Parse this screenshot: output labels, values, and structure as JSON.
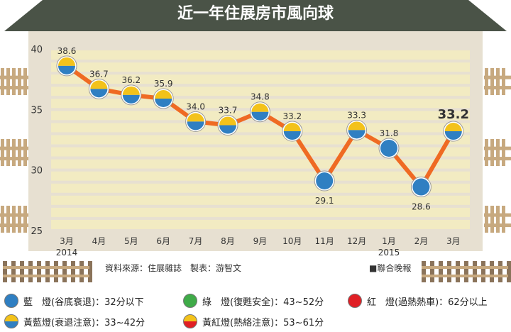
{
  "header": {
    "title": "近一年住展房市風向球"
  },
  "source": {
    "text": "資料來源：住展雜誌　製表：游智文"
  },
  "publisher": {
    "text": "■聯合晚報"
  },
  "legend": [
    {
      "label": "藍　燈(谷底衰退)：32分以下",
      "icon": "blue-light",
      "color": "#2f7fc2"
    },
    {
      "label": "綠　燈(復甦安全)：43~52分",
      "icon": "green-light",
      "color": "#3fab48"
    },
    {
      "label": "紅　燈(過熱熱車)：62分以上",
      "icon": "red-light",
      "color": "#e01f25"
    },
    {
      "label": "黃藍燈(衰退注意)：33~42分",
      "icon": "yellow-blue-light",
      "color": "#f3c21a"
    },
    {
      "label": "黃紅燈(熱絡注意)：53~61分",
      "icon": "yellow-red-light",
      "color": "#f3c21a"
    }
  ],
  "colors": {
    "roof": "#4a5347",
    "board": "#e7e0d1",
    "stripe": "#f2ebc2",
    "line": "#ef6a23",
    "yellow": "#f3c21a",
    "blue": "#2f7fc2",
    "fence": "#c7a97f",
    "rail": "#8a735a"
  },
  "chart_data": {
    "type": "line",
    "title": "近一年住展房市風向球",
    "categories": [
      "3月",
      "4月",
      "5月",
      "6月",
      "7月",
      "8月",
      "9月",
      "10月",
      "11月",
      "12月",
      "1月",
      "2月",
      "3月"
    ],
    "year_labels": [
      "2014",
      "",
      "",
      "",
      "",
      "",
      "",
      "",
      "",
      "",
      "2015",
      "",
      ""
    ],
    "values": [
      38.6,
      36.7,
      36.2,
      35.9,
      34.0,
      33.7,
      34.8,
      33.2,
      29.1,
      33.3,
      31.8,
      28.6,
      33.2
    ],
    "labels": [
      "38.6",
      "36.7",
      "36.2",
      "35.9",
      "34.0",
      "33.7",
      "34.8",
      "33.2",
      "29.1",
      "33.3",
      "31.8",
      "28.6",
      "33.2"
    ],
    "light_types": [
      "yellow-blue",
      "yellow-blue",
      "yellow-blue",
      "yellow-blue",
      "yellow-blue",
      "yellow-blue",
      "yellow-blue",
      "yellow-blue",
      "blue",
      "yellow-blue",
      "blue",
      "blue",
      "yellow-blue"
    ],
    "label_positions": [
      "above",
      "above",
      "above",
      "above",
      "above",
      "above",
      "above",
      "above",
      "below",
      "above",
      "above",
      "below",
      "above"
    ],
    "highlight_last": true,
    "ylim": [
      25,
      40
    ],
    "yticks": [
      25,
      30,
      35,
      40
    ],
    "xlabel": "",
    "ylabel": "",
    "grid": "horizontal stripes"
  }
}
